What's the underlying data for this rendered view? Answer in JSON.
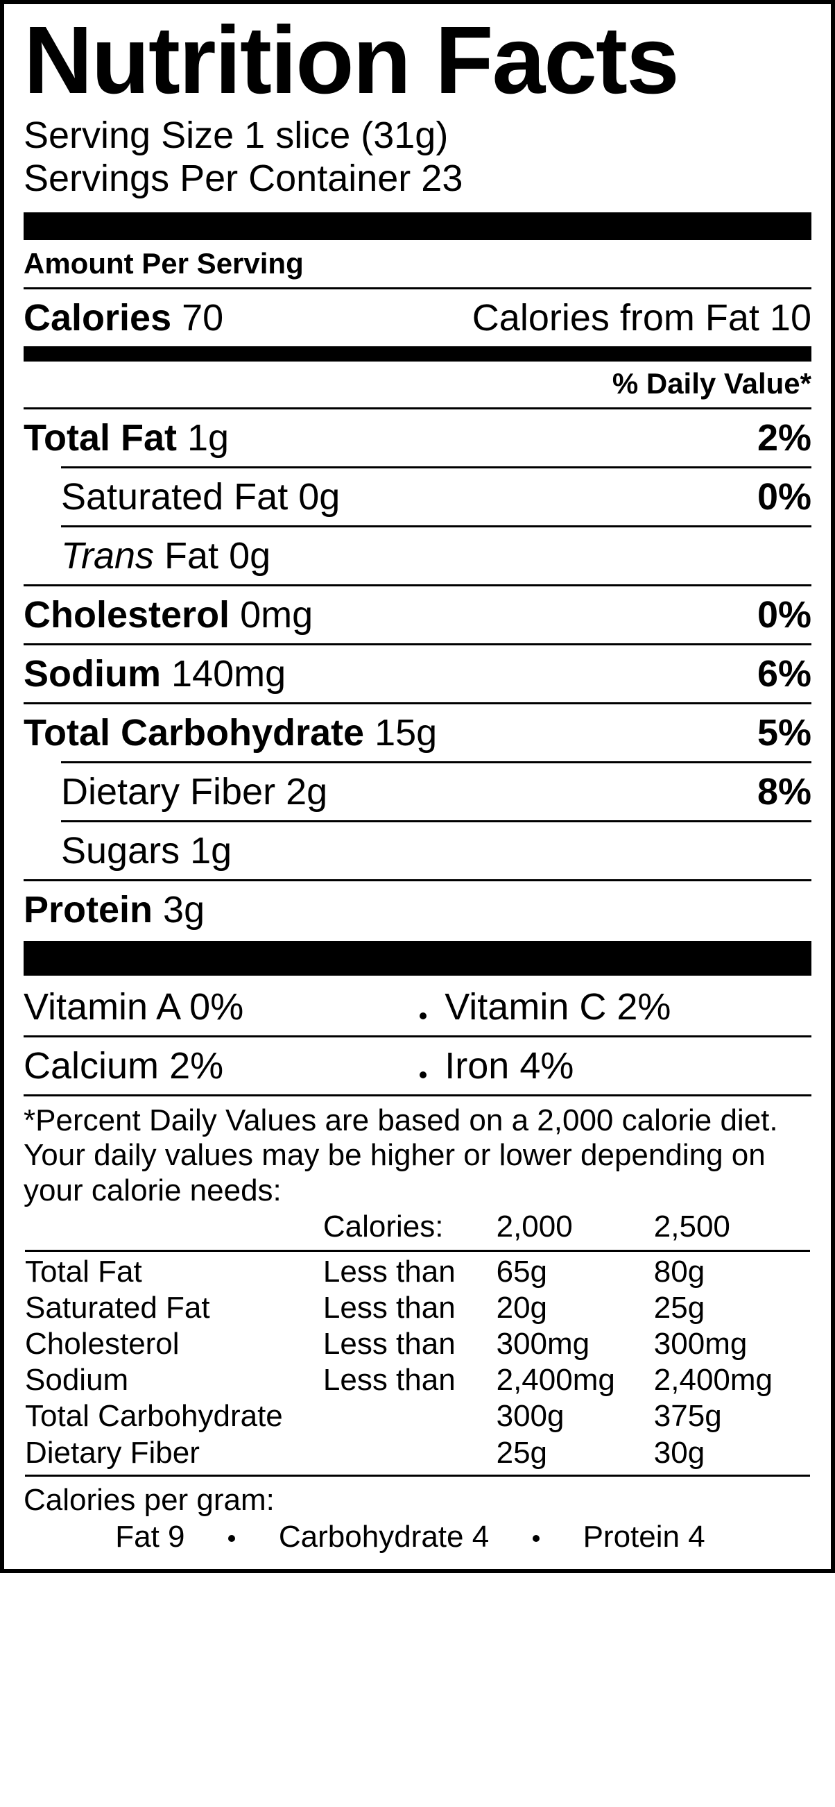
{
  "title": "Nutrition Facts",
  "serving_size_label": "Serving Size",
  "serving_size_value": "1 slice (31g)",
  "servings_per_container_label": "Servings Per Container",
  "servings_per_container_value": "23",
  "amount_per_serving": "Amount Per Serving",
  "calories_label": "Calories",
  "calories_value": "70",
  "calories_from_fat_label": "Calories from Fat",
  "calories_from_fat_value": "10",
  "daily_value_header": "% Daily Value*",
  "nutrients": {
    "total_fat": {
      "label": "Total Fat",
      "amount": "1g",
      "dv": "2%"
    },
    "saturated_fat": {
      "label": "Saturated Fat",
      "amount": "0g",
      "dv": "0%"
    },
    "trans_fat": {
      "label_prefix": "Trans",
      "label_suffix": " Fat",
      "amount": "0g"
    },
    "cholesterol": {
      "label": "Cholesterol",
      "amount": "0mg",
      "dv": "0%"
    },
    "sodium": {
      "label": "Sodium",
      "amount": "140mg",
      "dv": "6%"
    },
    "total_carb": {
      "label": "Total Carbohydrate",
      "amount": "15g",
      "dv": "5%"
    },
    "dietary_fiber": {
      "label": "Dietary Fiber",
      "amount": "2g",
      "dv": "8%"
    },
    "sugars": {
      "label": "Sugars",
      "amount": "1g"
    },
    "protein": {
      "label": "Protein",
      "amount": "3g"
    }
  },
  "vitamins": {
    "vitamin_a": {
      "label": "Vitamin A",
      "value": "0%"
    },
    "vitamin_c": {
      "label": "Vitamin C",
      "value": "2%"
    },
    "calcium": {
      "label": "Calcium",
      "value": "2%"
    },
    "iron": {
      "label": "Iron",
      "value": "4%"
    }
  },
  "footnote": "*Percent Daily Values are based on a 2,000 calorie diet. Your daily values may be higher or lower depending on your calorie needs:",
  "ref_header": {
    "calories": "Calories:",
    "c2000": "2,000",
    "c2500": "2,500"
  },
  "ref_rows": [
    {
      "name": "Total Fat",
      "cond": "Less than",
      "c2000": "65g",
      "c2500": "80g",
      "indent": false
    },
    {
      "name": "Saturated Fat",
      "cond": "Less than",
      "c2000": "20g",
      "c2500": "25g",
      "indent": true
    },
    {
      "name": "Cholesterol",
      "cond": "Less than",
      "c2000": "300mg",
      "c2500": "300mg",
      "indent": false
    },
    {
      "name": "Sodium",
      "cond": "Less than",
      "c2000": "2,400mg",
      "c2500": "2,400mg",
      "indent": false
    },
    {
      "name": "Total Carbohydrate",
      "cond": "",
      "c2000": "300g",
      "c2500": "375g",
      "indent": false
    },
    {
      "name": "Dietary Fiber",
      "cond": "",
      "c2000": "25g",
      "c2500": "30g",
      "indent": true
    }
  ],
  "cpg_label": "Calories per gram:",
  "cpg_fat": "Fat 9",
  "cpg_carb": "Carbohydrate 4",
  "cpg_protein": "Protein 4"
}
